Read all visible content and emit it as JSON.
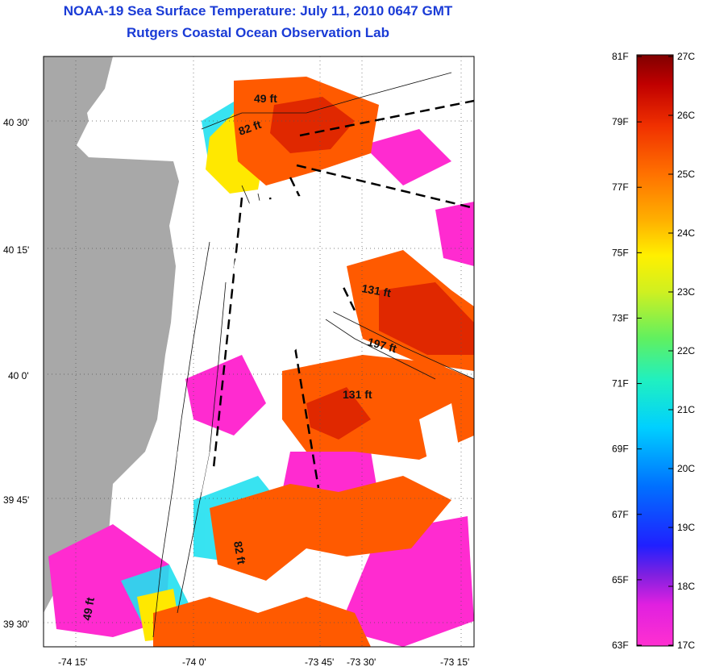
{
  "title": {
    "line1": "NOAA-19 Sea Surface Temperature:  July 11, 2010 0647 GMT",
    "line2": "Rutgers Coastal Ocean Observation Lab"
  },
  "map": {
    "lat_ticks": [
      "40 30'",
      "40 15'",
      "40 0'",
      "39 45'",
      "39 30'"
    ],
    "lon_ticks": [
      "-74 15'",
      "-74 0'",
      "-73 45'",
      "-73 30'",
      "-73 15'"
    ],
    "depth_labels": [
      "49 ft",
      "82 ft",
      "131 ft",
      "197 ft",
      "131 ft",
      "82 ft",
      "49 ft"
    ],
    "colors": {
      "land": "#a8a8a8",
      "cloud": "#ffffff",
      "warm": "#ff5a00",
      "hot": "#e02800",
      "cool_magenta": "#ff2bd0",
      "mid_cyan": "#22e0f0",
      "mid_yellow": "#ffe800"
    }
  },
  "colorbar": {
    "fahrenheit": [
      "81F",
      "79F",
      "77F",
      "75F",
      "73F",
      "71F",
      "69F",
      "67F",
      "65F",
      "63F"
    ],
    "celsius": [
      "27C",
      "26C",
      "25C",
      "24C",
      "23C",
      "22C",
      "21C",
      "20C",
      "19C",
      "18C",
      "17C"
    ]
  }
}
